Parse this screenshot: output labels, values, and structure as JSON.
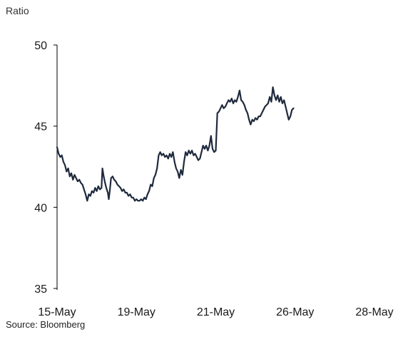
{
  "chart_data": {
    "type": "line",
    "ylabel": "Ratio",
    "ylim": [
      35,
      50
    ],
    "yticks": [
      35,
      40,
      45,
      50
    ],
    "xlim": [
      0,
      1
    ],
    "xticks": [
      {
        "label": "15-May",
        "x": 0.0
      },
      {
        "label": "19-May",
        "x": 0.25
      },
      {
        "label": "21-May",
        "x": 0.5
      },
      {
        "label": "26-May",
        "x": 0.75
      },
      {
        "label": "28-May",
        "x": 1.0
      }
    ],
    "grid": false,
    "legend": "none",
    "series": [
      {
        "color": "#1f2a3d",
        "points": [
          [
            0.0,
            43.7
          ],
          [
            0.005,
            43.3
          ],
          [
            0.01,
            43.1
          ],
          [
            0.015,
            43.2
          ],
          [
            0.02,
            42.8
          ],
          [
            0.025,
            42.6
          ],
          [
            0.03,
            42.2
          ],
          [
            0.035,
            42.4
          ],
          [
            0.04,
            41.9
          ],
          [
            0.045,
            42.1
          ],
          [
            0.05,
            41.7
          ],
          [
            0.055,
            42.0
          ],
          [
            0.06,
            41.8
          ],
          [
            0.065,
            41.6
          ],
          [
            0.07,
            41.7
          ],
          [
            0.075,
            41.5
          ],
          [
            0.08,
            41.4
          ],
          [
            0.085,
            41.1
          ],
          [
            0.09,
            40.8
          ],
          [
            0.095,
            40.4
          ],
          [
            0.1,
            40.8
          ],
          [
            0.105,
            40.7
          ],
          [
            0.11,
            41.0
          ],
          [
            0.115,
            40.9
          ],
          [
            0.12,
            41.2
          ],
          [
            0.125,
            41.0
          ],
          [
            0.13,
            41.3
          ],
          [
            0.135,
            41.1
          ],
          [
            0.14,
            41.2
          ],
          [
            0.143,
            42.4
          ],
          [
            0.146,
            42.0
          ],
          [
            0.15,
            41.6
          ],
          [
            0.155,
            41.2
          ],
          [
            0.16,
            40.9
          ],
          [
            0.163,
            40.5
          ],
          [
            0.166,
            41.0
          ],
          [
            0.17,
            41.8
          ],
          [
            0.175,
            41.9
          ],
          [
            0.18,
            41.7
          ],
          [
            0.185,
            41.6
          ],
          [
            0.19,
            41.4
          ],
          [
            0.195,
            41.3
          ],
          [
            0.2,
            41.2
          ],
          [
            0.205,
            41.0
          ],
          [
            0.21,
            41.1
          ],
          [
            0.215,
            40.9
          ],
          [
            0.22,
            40.9
          ],
          [
            0.225,
            40.7
          ],
          [
            0.23,
            40.8
          ],
          [
            0.235,
            40.6
          ],
          [
            0.24,
            40.6
          ],
          [
            0.245,
            40.4
          ],
          [
            0.25,
            40.5
          ],
          [
            0.255,
            40.4
          ],
          [
            0.26,
            40.4
          ],
          [
            0.265,
            40.5
          ],
          [
            0.27,
            40.4
          ],
          [
            0.275,
            40.6
          ],
          [
            0.28,
            40.5
          ],
          [
            0.285,
            40.8
          ],
          [
            0.29,
            41.0
          ],
          [
            0.295,
            41.4
          ],
          [
            0.3,
            41.3
          ],
          [
            0.305,
            41.8
          ],
          [
            0.31,
            42.0
          ],
          [
            0.315,
            42.4
          ],
          [
            0.32,
            43.2
          ],
          [
            0.325,
            43.4
          ],
          [
            0.33,
            43.2
          ],
          [
            0.335,
            43.3
          ],
          [
            0.34,
            43.1
          ],
          [
            0.345,
            43.2
          ],
          [
            0.35,
            43.0
          ],
          [
            0.355,
            43.3
          ],
          [
            0.36,
            43.1
          ],
          [
            0.365,
            43.4
          ],
          [
            0.37,
            42.8
          ],
          [
            0.375,
            42.4
          ],
          [
            0.38,
            42.2
          ],
          [
            0.385,
            41.8
          ],
          [
            0.39,
            42.3
          ],
          [
            0.395,
            42.0
          ],
          [
            0.4,
            42.8
          ],
          [
            0.405,
            43.4
          ],
          [
            0.41,
            43.2
          ],
          [
            0.415,
            43.5
          ],
          [
            0.42,
            43.3
          ],
          [
            0.425,
            43.5
          ],
          [
            0.43,
            43.2
          ],
          [
            0.435,
            43.3
          ],
          [
            0.44,
            43.1
          ],
          [
            0.445,
            42.9
          ],
          [
            0.45,
            43.0
          ],
          [
            0.455,
            43.4
          ],
          [
            0.46,
            43.8
          ],
          [
            0.465,
            43.6
          ],
          [
            0.47,
            43.8
          ],
          [
            0.475,
            43.5
          ],
          [
            0.48,
            43.8
          ],
          [
            0.485,
            44.4
          ],
          [
            0.49,
            43.6
          ],
          [
            0.495,
            43.4
          ],
          [
            0.5,
            43.5
          ],
          [
            0.505,
            45.8
          ],
          [
            0.51,
            45.9
          ],
          [
            0.515,
            46.1
          ],
          [
            0.52,
            46.3
          ],
          [
            0.525,
            46.1
          ],
          [
            0.53,
            46.2
          ],
          [
            0.535,
            46.4
          ],
          [
            0.54,
            46.6
          ],
          [
            0.545,
            46.5
          ],
          [
            0.55,
            46.7
          ],
          [
            0.555,
            46.4
          ],
          [
            0.56,
            46.6
          ],
          [
            0.565,
            46.5
          ],
          [
            0.57,
            46.8
          ],
          [
            0.575,
            47.2
          ],
          [
            0.58,
            46.6
          ],
          [
            0.585,
            46.5
          ],
          [
            0.59,
            46.3
          ],
          [
            0.595,
            46.0
          ],
          [
            0.6,
            45.8
          ],
          [
            0.605,
            45.4
          ],
          [
            0.61,
            45.1
          ],
          [
            0.615,
            45.4
          ],
          [
            0.62,
            45.3
          ],
          [
            0.625,
            45.5
          ],
          [
            0.63,
            45.4
          ],
          [
            0.635,
            45.6
          ],
          [
            0.64,
            45.6
          ],
          [
            0.645,
            45.8
          ],
          [
            0.65,
            46.0
          ],
          [
            0.655,
            46.2
          ],
          [
            0.66,
            46.3
          ],
          [
            0.665,
            46.4
          ],
          [
            0.67,
            46.8
          ],
          [
            0.675,
            46.5
          ],
          [
            0.68,
            47.4
          ],
          [
            0.685,
            46.9
          ],
          [
            0.69,
            46.6
          ],
          [
            0.695,
            46.9
          ],
          [
            0.7,
            46.5
          ],
          [
            0.705,
            46.8
          ],
          [
            0.71,
            46.4
          ],
          [
            0.715,
            46.6
          ],
          [
            0.72,
            46.2
          ],
          [
            0.725,
            45.8
          ],
          [
            0.73,
            45.4
          ],
          [
            0.735,
            45.6
          ],
          [
            0.74,
            46.0
          ],
          [
            0.745,
            46.1
          ]
        ]
      }
    ],
    "source": "Source: Bloomberg"
  }
}
